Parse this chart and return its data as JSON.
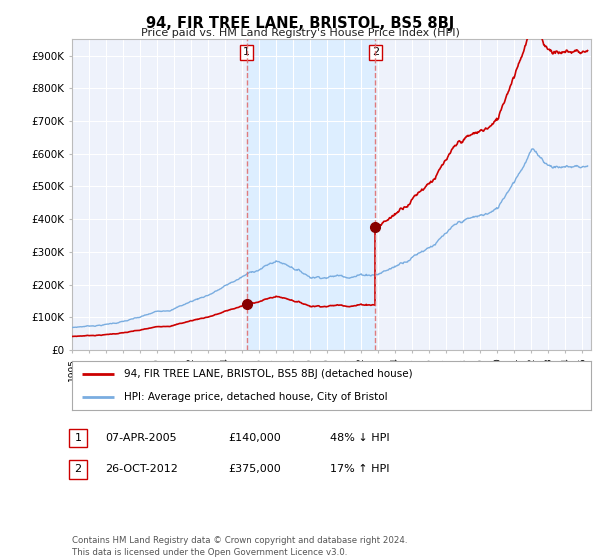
{
  "title": "94, FIR TREE LANE, BRISTOL, BS5 8BJ",
  "subtitle": "Price paid vs. HM Land Registry's House Price Index (HPI)",
  "ylabel_ticks": [
    "£0",
    "£100K",
    "£200K",
    "£300K",
    "£400K",
    "£500K",
    "£600K",
    "£700K",
    "£800K",
    "£900K"
  ],
  "ylim": [
    0,
    950000
  ],
  "xlim_start": 1995.0,
  "xlim_end": 2025.5,
  "sale1_year": 2005.27,
  "sale1_price": 140000,
  "sale2_year": 2012.82,
  "sale2_price": 375000,
  "red_line_color": "#cc0000",
  "blue_line_color": "#7aade0",
  "vline_color": "#e07070",
  "shade_color": "#ddeeff",
  "dot_color": "#880000",
  "legend_label_red": "94, FIR TREE LANE, BRISTOL, BS5 8BJ (detached house)",
  "legend_label_blue": "HPI: Average price, detached house, City of Bristol",
  "table_row1": [
    "1",
    "07-APR-2005",
    "£140,000",
    "48% ↓ HPI"
  ],
  "table_row2": [
    "2",
    "26-OCT-2012",
    "£375,000",
    "17% ↑ HPI"
  ],
  "footer": "Contains HM Land Registry data © Crown copyright and database right 2024.\nThis data is licensed under the Open Government Licence v3.0.",
  "background_color": "#ffffff",
  "plot_bg_color": "#eef2fb",
  "box_color": "#cc0000"
}
